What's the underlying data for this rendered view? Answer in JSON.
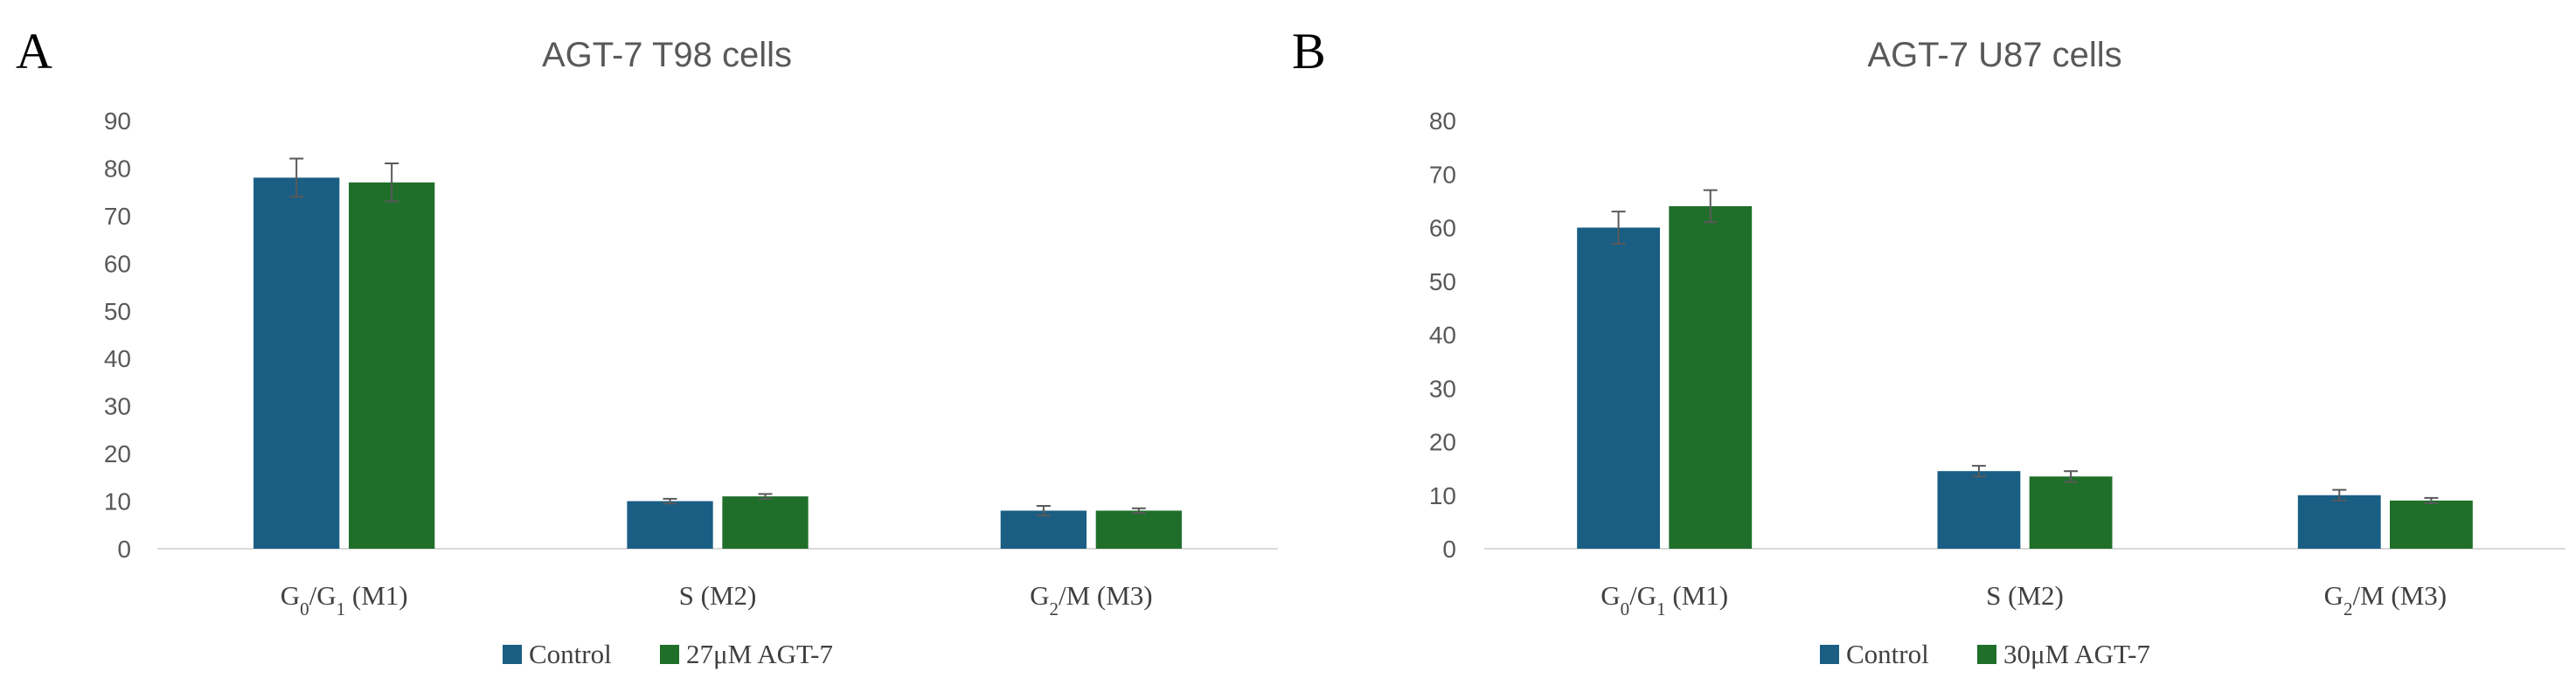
{
  "colors": {
    "control": "#1a5e84",
    "treated": "#1f6f2a",
    "axis": "#d9d9d9",
    "error": "#595959"
  },
  "chart_data": [
    {
      "panel": "A",
      "type": "bar",
      "title": "AGT-7  T98 cells",
      "categories": [
        {
          "base": "G",
          "sub1": "0",
          "mid": "/G",
          "sub2": "1",
          "tail": " (M1)"
        },
        {
          "base": "S (M2)",
          "sub1": "",
          "mid": "",
          "sub2": "",
          "tail": ""
        },
        {
          "base": "G",
          "sub1": "2",
          "mid": "/M (M3)",
          "sub2": "",
          "tail": ""
        }
      ],
      "ylim": [
        0,
        90
      ],
      "yticks": [
        0,
        10,
        20,
        30,
        40,
        50,
        60,
        70,
        80,
        90
      ],
      "series": [
        {
          "name": "Control",
          "values": [
            78,
            10,
            8
          ],
          "errors": [
            4,
            0.5,
            1
          ]
        },
        {
          "name": "27μM AGT-7",
          "values": [
            77,
            11,
            8
          ],
          "errors": [
            4,
            0.5,
            0.5
          ]
        }
      ]
    },
    {
      "panel": "B",
      "type": "bar",
      "title": "AGT-7  U87 cells",
      "categories": [
        {
          "base": "G",
          "sub1": "0",
          "mid": "/G",
          "sub2": "1",
          "tail": " (M1)"
        },
        {
          "base": "S (M2)",
          "sub1": "",
          "mid": "",
          "sub2": "",
          "tail": ""
        },
        {
          "base": "G",
          "sub1": "2",
          "mid": "/M (M3)",
          "sub2": "",
          "tail": ""
        }
      ],
      "ylim": [
        0,
        80
      ],
      "yticks": [
        0,
        10,
        20,
        30,
        40,
        50,
        60,
        70,
        80
      ],
      "series": [
        {
          "name": "Control",
          "values": [
            60,
            14.5,
            10
          ],
          "errors": [
            3,
            1,
            1
          ]
        },
        {
          "name": "30μM AGT-7",
          "values": [
            64,
            13.5,
            9
          ],
          "errors": [
            3,
            1,
            0.5
          ]
        }
      ]
    }
  ]
}
